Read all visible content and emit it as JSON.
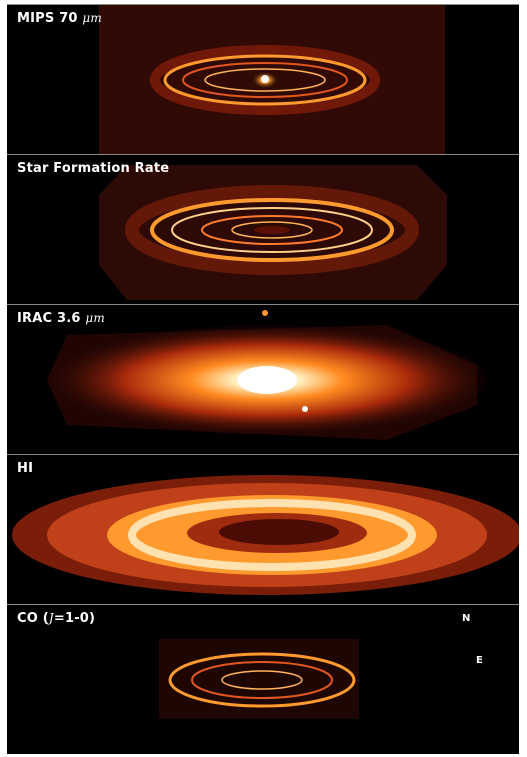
{
  "figure": {
    "panels": [
      {
        "id": "mips70",
        "label_main": "MIPS 70",
        "label_unit": "μm"
      },
      {
        "id": "sfr",
        "label_main": "Star Formation Rate",
        "label_unit": ""
      },
      {
        "id": "irac36",
        "label_main": "IRAC 3.6",
        "label_unit": "μm"
      },
      {
        "id": "hi",
        "label_main": "HI",
        "label_unit": ""
      },
      {
        "id": "co",
        "label_main": "CO (",
        "label_unit": "J",
        "label_tail": "=1-0)"
      }
    ],
    "compass": {
      "north": "N",
      "east": "E"
    },
    "colors": {
      "background": "#000000",
      "hot": "#ffffff",
      "warm": "#ff9a2e",
      "mid": "#d2421a",
      "cool": "#5a0f05"
    }
  }
}
